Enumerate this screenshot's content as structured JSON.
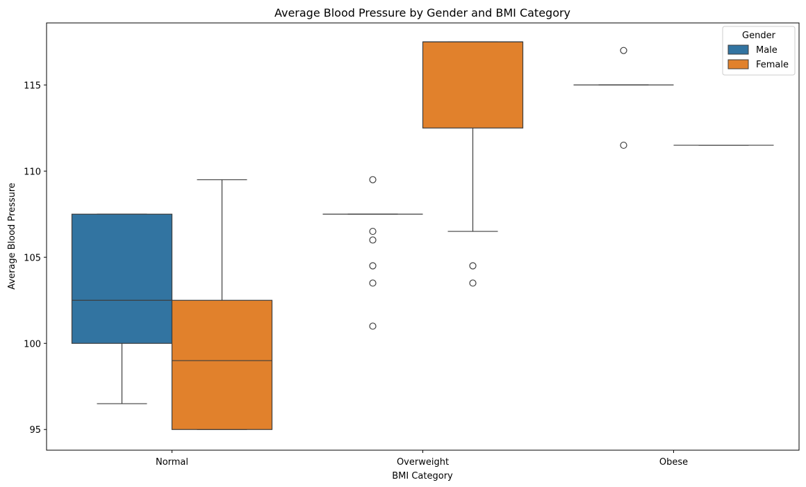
{
  "chart_data": {
    "type": "boxplot",
    "title": "Average Blood Pressure by Gender and BMI Category",
    "xlabel": "BMI Category",
    "ylabel": "Average Blood Pressure",
    "categories": [
      "Normal",
      "Overweight",
      "Obese"
    ],
    "ylim": [
      93.8,
      118.6
    ],
    "yticks": [
      95,
      100,
      105,
      110,
      115
    ],
    "grid": false,
    "legend": {
      "title": "Gender",
      "placement": "top-right"
    },
    "series": [
      {
        "name": "Male",
        "color": "#3274a1",
        "boxes": [
          {
            "category": "Normal",
            "whislo": 96.5,
            "q1": 100,
            "med": 102.5,
            "q3": 107.5,
            "whishi": 107.5,
            "fliers": []
          },
          {
            "category": "Overweight",
            "whislo": 107.5,
            "q1": 107.5,
            "med": 107.5,
            "q3": 107.5,
            "whishi": 107.5,
            "fliers": [
              109.5,
              106.5,
              106,
              104.5,
              103.5,
              101
            ]
          },
          {
            "category": "Obese",
            "whislo": 115,
            "q1": 115,
            "med": 115,
            "q3": 115,
            "whishi": 115,
            "fliers": [
              117,
              111.5
            ]
          }
        ]
      },
      {
        "name": "Female",
        "color": "#e1812c",
        "boxes": [
          {
            "category": "Normal",
            "whislo": 95,
            "q1": 95,
            "med": 99,
            "q3": 102.5,
            "whishi": 109.5,
            "fliers": []
          },
          {
            "category": "Overweight",
            "whislo": 106.5,
            "q1": 112.5,
            "med": 117.5,
            "q3": 117.5,
            "whishi": 117.5,
            "fliers": [
              104.5,
              103.5
            ]
          },
          {
            "category": "Obese",
            "whislo": 111.5,
            "q1": 111.5,
            "med": 111.5,
            "q3": 111.5,
            "whishi": 111.5,
            "fliers": []
          }
        ]
      }
    ]
  }
}
